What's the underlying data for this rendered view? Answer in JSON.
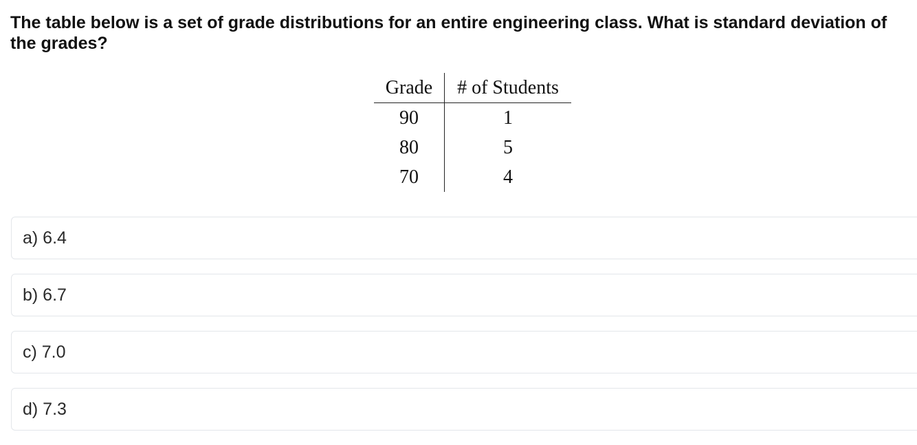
{
  "question": {
    "text": "The table below is a set of grade distributions for an entire engineering class. What is standard deviation of the grades?"
  },
  "table": {
    "headers": [
      "Grade",
      "# of Students"
    ],
    "rows": [
      [
        "90",
        "1"
      ],
      [
        "80",
        "5"
      ],
      [
        "70",
        "4"
      ]
    ]
  },
  "options": [
    {
      "label": "a) 6.4"
    },
    {
      "label": "b) 6.7"
    },
    {
      "label": "c) 7.0"
    },
    {
      "label": "d) 7.3"
    }
  ]
}
